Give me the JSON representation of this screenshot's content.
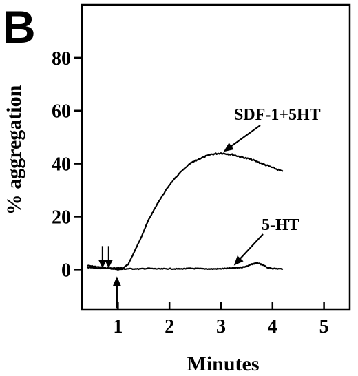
{
  "panel_label": "B",
  "chart_data": {
    "type": "line",
    "xlabel": "Minutes",
    "ylabel": "% aggregation",
    "xlim": [
      0.3,
      5.5
    ],
    "ylim": [
      -15,
      100
    ],
    "xticks": [
      1,
      2,
      3,
      4,
      5
    ],
    "yticks": [
      0,
      20,
      40,
      60,
      80
    ],
    "grid": false,
    "series": [
      {
        "name": "SDF-1+5HT",
        "x": [
          0.4,
          0.6,
          0.8,
          1.0,
          1.1,
          1.2,
          1.4,
          1.6,
          1.8,
          2.0,
          2.2,
          2.4,
          2.6,
          2.8,
          3.0,
          3.2,
          3.4,
          3.6,
          3.8,
          4.0,
          4.2
        ],
        "y": [
          1.5,
          1,
          0.5,
          0.5,
          0.5,
          2,
          10,
          19,
          26,
          32,
          36.5,
          40,
          42,
          43.5,
          44,
          43.5,
          42.5,
          41.5,
          40,
          38.5,
          37
        ]
      },
      {
        "name": "5-HT",
        "x": [
          0.4,
          0.6,
          0.8,
          1.0,
          1.2,
          1.4,
          1.6,
          1.8,
          2.0,
          2.2,
          2.4,
          2.6,
          2.8,
          3.0,
          3.2,
          3.4,
          3.5,
          3.6,
          3.7,
          3.8,
          3.9,
          4.0,
          4.2
        ],
        "y": [
          0.8,
          0.5,
          0.5,
          0,
          0.3,
          0.2,
          0.4,
          0.2,
          0.3,
          0.2,
          0.4,
          0.3,
          0.2,
          0.3,
          0.5,
          0.8,
          1.2,
          2.0,
          2.5,
          1.8,
          0.8,
          0.4,
          0.2
        ]
      }
    ],
    "annotations": [
      {
        "text": "SDF-1+5HT",
        "target_x": 3.05,
        "target_y": 44.5
      },
      {
        "text": "5-HT",
        "target_x": 3.25,
        "target_y": 1.5
      }
    ],
    "markers": [
      {
        "direction": "down",
        "x": 0.7
      },
      {
        "direction": "down",
        "x": 0.82
      },
      {
        "direction": "up",
        "x": 0.98
      }
    ]
  }
}
